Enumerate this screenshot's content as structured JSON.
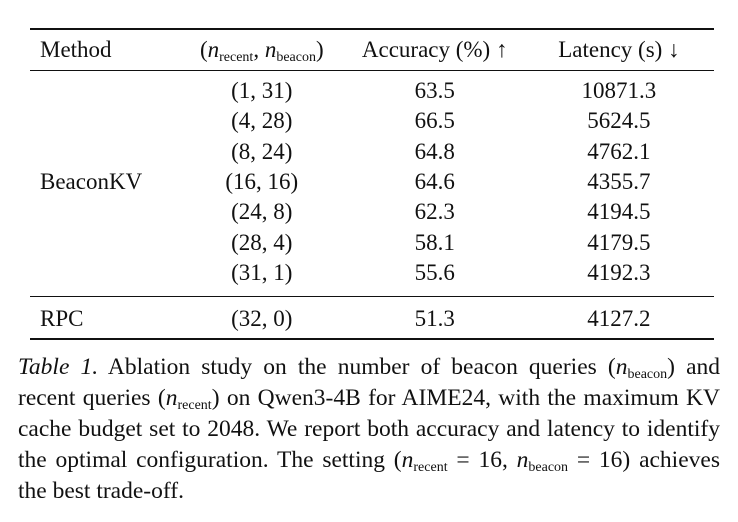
{
  "table": {
    "headers": {
      "method": "Method",
      "config_open": "(",
      "config_n": "n",
      "config_recent_sub": "recent",
      "config_sep": ", ",
      "config_beacon_sub": "beacon",
      "config_close": ")",
      "accuracy": "Accuracy (%) ↑",
      "latency": "Latency (s) ↓"
    },
    "beaconkv": {
      "method": "BeaconKV",
      "rows": [
        {
          "config": "(1, 31)",
          "accuracy": "63.5",
          "latency": "10871.3",
          "best": false
        },
        {
          "config": "(4, 28)",
          "accuracy": "66.5",
          "latency": "5624.5",
          "best": false
        },
        {
          "config": "(8, 24)",
          "accuracy": "64.8",
          "latency": "4762.1",
          "best": false
        },
        {
          "config": "(16, 16)",
          "accuracy": "64.6",
          "latency": "4355.7",
          "best": true
        },
        {
          "config": "(24, 8)",
          "accuracy": "62.3",
          "latency": "4194.5",
          "best": false
        },
        {
          "config": "(28, 4)",
          "accuracy": "58.1",
          "latency": "4179.5",
          "best": false
        },
        {
          "config": "(31, 1)",
          "accuracy": "55.6",
          "latency": "4192.3",
          "best": false
        }
      ]
    },
    "rpc": {
      "method": "RPC",
      "config": "(32, 0)",
      "accuracy": "51.3",
      "latency": "4127.2"
    }
  },
  "caption": {
    "label": "Table 1.",
    "part1": " Ablation study on the number of beacon queries (",
    "n": "n",
    "sub_beacon": "beacon",
    "part2": ") and recent queries (",
    "sub_recent": "recent",
    "part3": ") on Qwen3-4B for AIME24, with the maximum KV cache budget set to 2048. We report both accuracy and latency to identify the optimal configuration. The setting (",
    "eq1": " = 16, ",
    "eq2": " = 16)",
    "part4": " achieves the best trade-off."
  }
}
